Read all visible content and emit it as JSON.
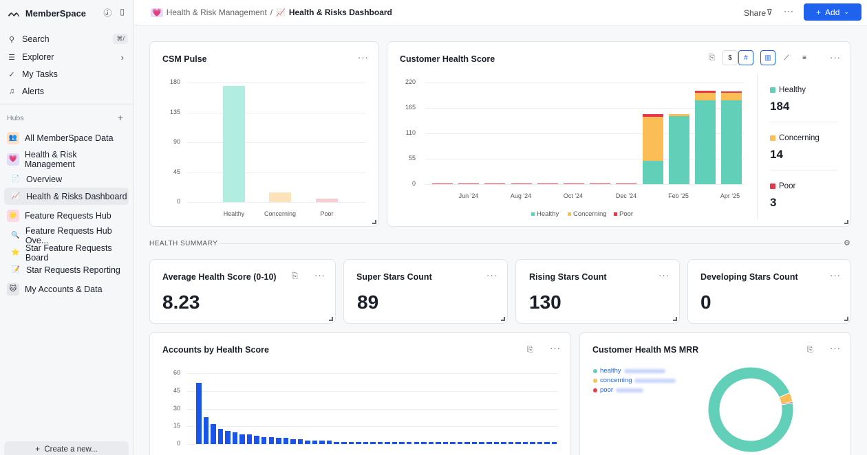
{
  "sidebar": {
    "workspace": "MemberSpace",
    "search": "Search",
    "search_kbd": "⌘/",
    "explorer": "Explorer",
    "my_tasks": "My Tasks",
    "alerts": "Alerts",
    "hubs_label": "Hubs",
    "hubs": [
      {
        "label": "All MemberSpace Data",
        "emoji": "👥"
      },
      {
        "label": "Health & Risk Management",
        "emoji": "💗"
      },
      {
        "label": "Overview",
        "emoji": "📄"
      },
      {
        "label": "Health & Risks Dashboard",
        "emoji": "📈"
      },
      {
        "label": "Feature Requests Hub",
        "emoji": "🌟"
      },
      {
        "label": "Feature Requests Hub Ove...",
        "emoji": "🔍"
      },
      {
        "label": "Star Feature Requests Board",
        "emoji": "⭐"
      },
      {
        "label": "Star Requests Reporting",
        "emoji": "📝"
      },
      {
        "label": "My Accounts & Data",
        "emoji": "🐱"
      }
    ],
    "create": "Create a new..."
  },
  "topbar": {
    "parent": "Health & Risk Management",
    "current": "Health & Risks Dashboard",
    "share": "Share",
    "add": "Add"
  },
  "section_label": "HEALTH SUMMARY",
  "cards": {
    "csm_pulse": "CSM Pulse",
    "customer_health": "Customer Health Score",
    "avg_health": "Average Health Score (0-10)",
    "super_stars": "Super Stars Count",
    "rising_stars": "Rising Stars Count",
    "developing_stars": "Developing Stars Count",
    "accounts_by_health": "Accounts by Health Score",
    "health_mrr": "Customer Health MS MRR"
  },
  "stats": {
    "avg_health": "8.23",
    "super_stars": "89",
    "rising_stars": "130",
    "developing_stars": "0"
  },
  "health_legend": {
    "healthy_label": "Healthy",
    "healthy_value": "184",
    "concerning_label": "Concerning",
    "concerning_value": "14",
    "poor_label": "Poor",
    "poor_value": "3"
  },
  "mrr_legend": [
    "healthy",
    "concerning",
    "poor"
  ],
  "colors": {
    "healthy": "#62cfb8",
    "concerning": "#fbbd55",
    "poor": "#e5384a",
    "accent": "#1e62ee",
    "bar_blue": "#1a54e8"
  },
  "chart_data": [
    {
      "type": "bar",
      "title": "CSM Pulse",
      "categories": [
        "Healthy",
        "Concerning",
        "Poor"
      ],
      "values": [
        175,
        14,
        5
      ],
      "yticks": [
        "180",
        "135",
        "90",
        "45",
        "0"
      ],
      "ylim": [
        0,
        180
      ]
    },
    {
      "type": "bar",
      "stacked": true,
      "title": "Customer Health Score",
      "xticks": [
        "Jun '24",
        "Aug '24",
        "Oct '24",
        "Dec '24",
        "Feb '25",
        "Apr '25"
      ],
      "yticks": [
        "220",
        "165",
        "110",
        "55",
        "0"
      ],
      "ylim": [
        0,
        220
      ],
      "series": [
        {
          "name": "Healthy",
          "values": [
            0,
            0,
            0,
            0,
            0,
            0,
            0,
            0,
            50,
            147,
            182,
            182
          ]
        },
        {
          "name": "Concerning",
          "values": [
            0,
            0,
            0,
            0,
            0,
            0,
            0,
            0,
            95,
            5,
            16,
            16
          ]
        },
        {
          "name": "Poor",
          "values": [
            2,
            2,
            2,
            2,
            2,
            2,
            2,
            2,
            7,
            0,
            4,
            3
          ]
        }
      ]
    },
    {
      "type": "bar",
      "title": "Accounts by Health Score",
      "yticks": [
        "60",
        "45",
        "30",
        "15",
        "0"
      ],
      "ylim": [
        0,
        60
      ],
      "values": [
        52,
        23,
        17,
        13,
        11,
        10,
        8,
        8,
        7,
        6,
        6,
        5,
        5,
        4,
        4,
        3,
        3,
        3,
        3,
        2,
        2,
        2,
        2,
        2,
        2,
        2,
        2,
        2,
        2,
        2,
        2,
        2,
        2,
        2,
        2,
        2,
        2,
        2,
        2,
        2,
        2,
        2,
        2,
        2,
        2,
        2,
        2,
        2,
        2,
        2
      ]
    },
    {
      "type": "pie",
      "title": "Customer Health MS MRR",
      "categories": [
        "healthy",
        "concerning",
        "poor"
      ],
      "values": [
        96,
        3.5,
        0.5
      ]
    }
  ]
}
